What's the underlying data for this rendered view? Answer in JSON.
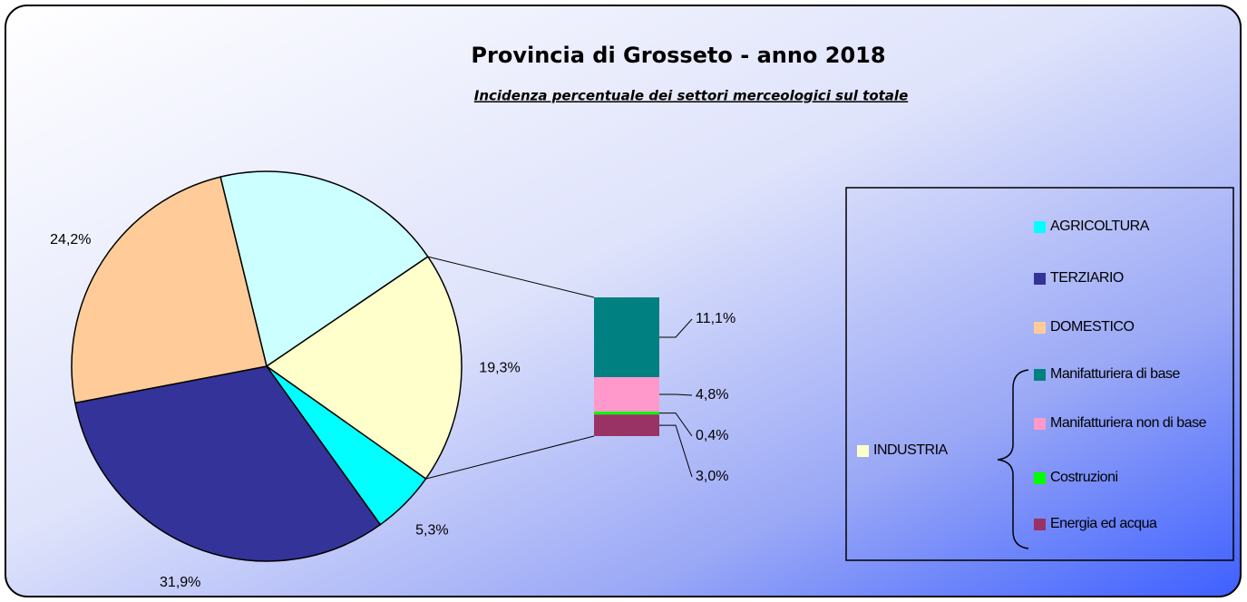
{
  "chart_data": {
    "type": "pie",
    "title": "Provincia di Grosseto - anno 2018",
    "subtitle": "Incidenza percentuale dei settori merceologici sul totale",
    "categories": [
      null,
      "INDUSTRIA",
      "AGRICOLTURA",
      "TERZIARIO",
      "DOMESTICO"
    ],
    "values": [
      19.3,
      19.3,
      5.3,
      31.9,
      24.2
    ],
    "value_labels": [
      null,
      "19,3%",
      "5,3%",
      "31,9%",
      "24,2%"
    ],
    "colors": [
      "#ccffff",
      "#ffffcc",
      "#00ffff",
      "#333399",
      "#ffcc99"
    ],
    "breakdown": {
      "type": "stacked-bar",
      "categories": [
        "Manifatturiera di base",
        "Manifatturiera non di base",
        "Costruzioni",
        "Energia ed acqua"
      ],
      "values": [
        11.1,
        4.8,
        0.4,
        3.0
      ],
      "value_labels": [
        "11,1%",
        "4,8%",
        "0,4%",
        "3,0%"
      ],
      "colors": [
        "#008080",
        "#ff99cc",
        "#00ff00",
        "#993366"
      ]
    }
  }
}
